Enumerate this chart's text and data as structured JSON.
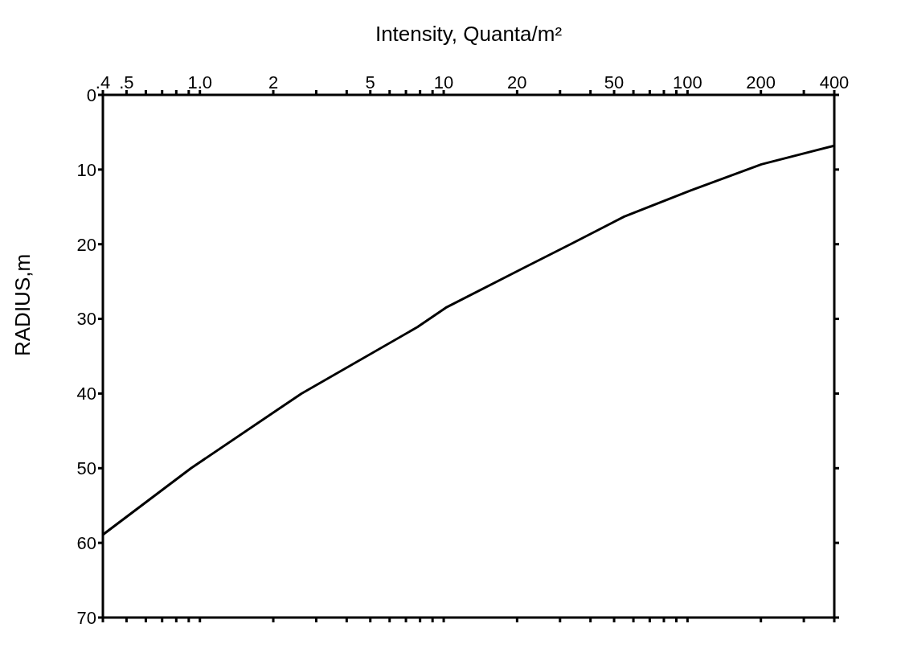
{
  "chart_data": {
    "type": "line",
    "xlabel": "Intensity, Quanta/m²",
    "ylabel": "RADIUS,m",
    "log": "x",
    "marker": "none",
    "line_style": "solid",
    "x": [
      400,
      201,
      103,
      55,
      33.6,
      21.5,
      10.2,
      7.8,
      2.61,
      0.92,
      0.4
    ],
    "series": [
      {
        "color": "#000000",
        "values": [
          6.8,
          9.3,
          12.8,
          16.3,
          19.9,
          23.1,
          28.5,
          31.1,
          40.0,
          50.0,
          58.9
        ]
      }
    ],
    "xlim": [
      0.4,
      400
    ],
    "xticks": [
      {
        "value": 0.4,
        "label": ".4"
      },
      {
        "value": 0.5,
        "label": ".5"
      },
      {
        "value": 0.6,
        "label": null
      },
      {
        "value": 0.7,
        "label": null
      },
      {
        "value": 0.8,
        "label": null
      },
      {
        "value": 0.9,
        "label": null
      },
      {
        "value": 1,
        "label": "1.0"
      },
      2,
      {
        "value": 3,
        "label": null
      },
      {
        "value": 4,
        "label": null
      },
      5,
      {
        "value": 6,
        "label": null
      },
      {
        "value": 7,
        "label": null
      },
      {
        "value": 8,
        "label": null
      },
      {
        "value": 9,
        "label": null
      },
      10,
      20,
      {
        "value": 30,
        "label": null
      },
      {
        "value": 40,
        "label": null
      },
      50,
      {
        "value": 60,
        "label": null
      },
      {
        "value": 70,
        "label": null
      },
      {
        "value": 80,
        "label": null
      },
      {
        "value": 90,
        "label": null
      },
      100,
      200,
      {
        "value": 300,
        "label": null
      },
      400
    ],
    "ylim": [
      70,
      0
    ],
    "yticks": [
      0,
      10,
      20,
      30,
      40,
      50,
      60,
      70
    ]
  }
}
